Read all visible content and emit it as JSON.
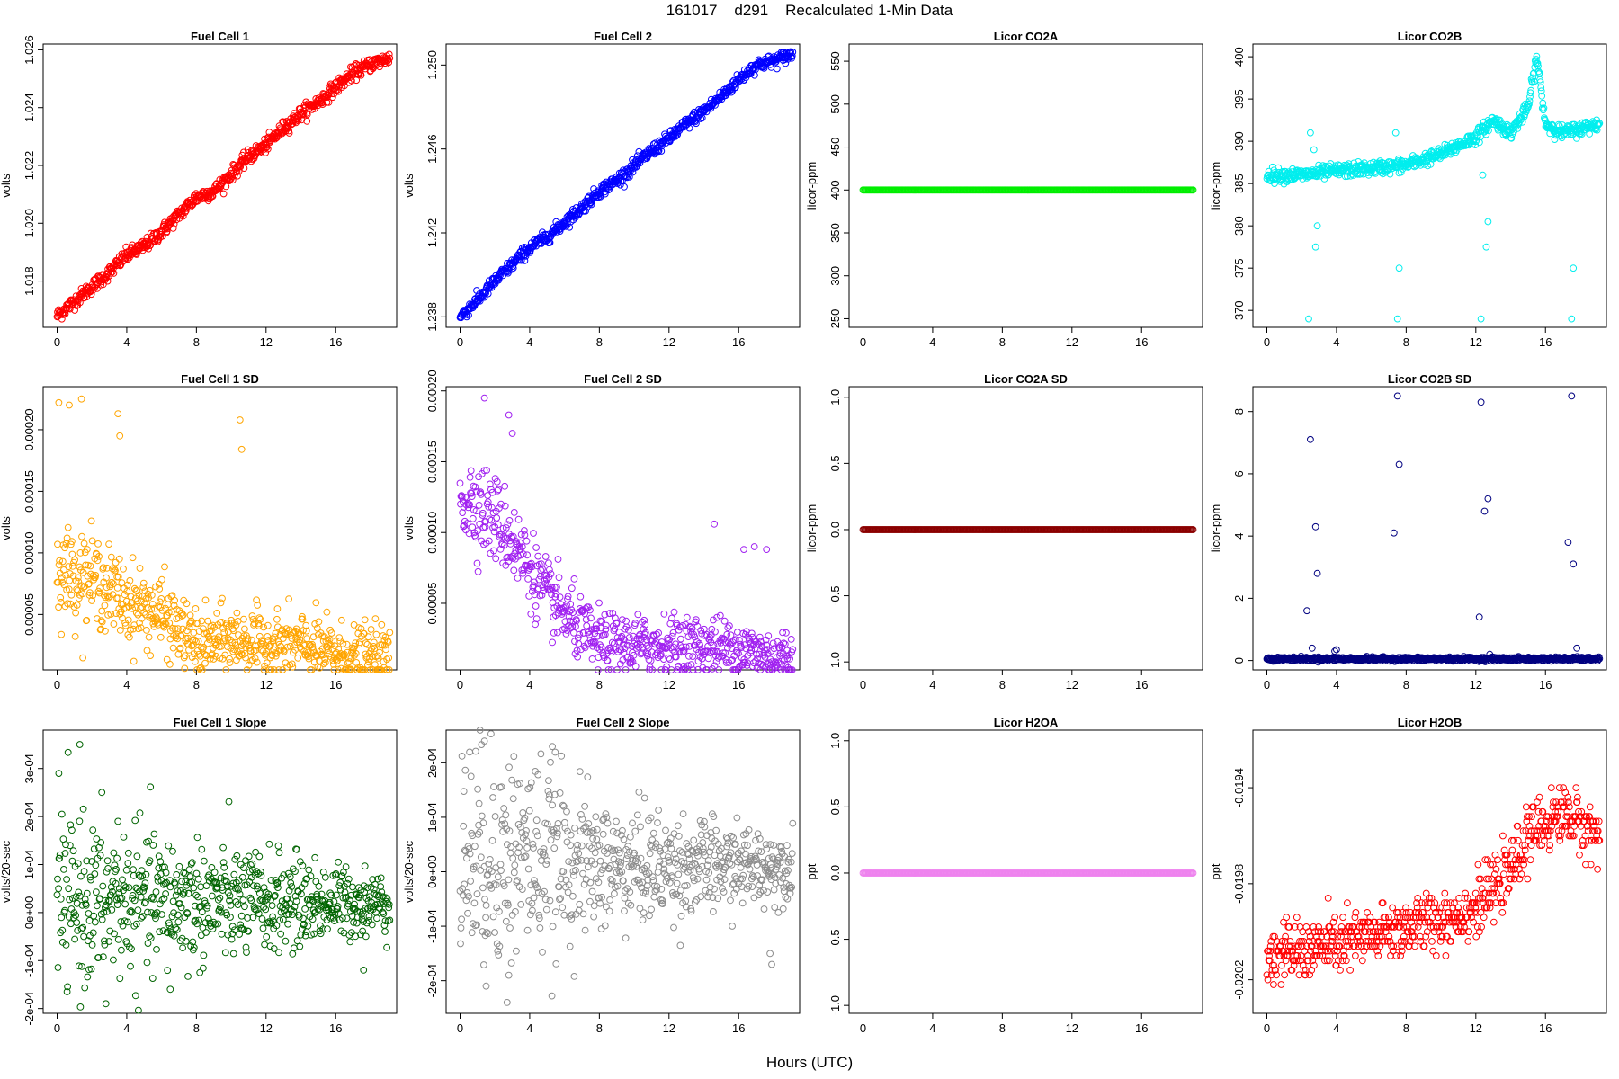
{
  "figure": {
    "title": "161017    d291    Recalculated 1-Min Data",
    "xlabel": "Hours (UTC)"
  },
  "chart_data": [
    {
      "type": "scatter",
      "title": "Fuel Cell 1",
      "ylabel": "volts",
      "color": "#ff0000",
      "xlim": [
        -0.8,
        19.5
      ],
      "ylim": [
        1.0164,
        1.0262
      ],
      "yticks": [
        1.018,
        1.02,
        1.022,
        1.024,
        1.026
      ],
      "ytick_labels": [
        "1.018",
        "1.020",
        "1.022",
        "1.024",
        "1.026"
      ],
      "xticks": [
        0,
        4,
        8,
        12,
        16
      ],
      "xtick_labels": [
        "0",
        "4",
        "8",
        "12",
        "16"
      ],
      "trend": {
        "x": [
          0,
          1,
          2,
          3,
          4,
          5,
          6,
          7,
          8,
          9,
          10,
          11,
          12,
          13,
          14,
          15,
          16,
          17,
          18,
          19
        ],
        "y": [
          1.0168,
          1.0173,
          1.0178,
          1.0183,
          1.0189,
          1.0192,
          1.0197,
          1.0203,
          1.0209,
          1.0211,
          1.0217,
          1.0223,
          1.0227,
          1.0233,
          1.0238,
          1.0242,
          1.0247,
          1.0252,
          1.0255,
          1.0257
        ]
      },
      "pattern": "dense_band",
      "spread": 0.00012
    },
    {
      "type": "scatter",
      "title": "Fuel Cell 2",
      "ylabel": "volts",
      "color": "#0000ff",
      "xlim": [
        -0.8,
        19.5
      ],
      "ylim": [
        1.2375,
        1.251
      ],
      "yticks": [
        1.238,
        1.242,
        1.246,
        1.25
      ],
      "ytick_labels": [
        "1.238",
        "1.242",
        "1.246",
        "1.250"
      ],
      "xticks": [
        0,
        4,
        8,
        12,
        16
      ],
      "xtick_labels": [
        "0",
        "4",
        "8",
        "12",
        "16"
      ],
      "trend": {
        "x": [
          0,
          1,
          2,
          3,
          4,
          5,
          6,
          7,
          8,
          9,
          10,
          11,
          12,
          13,
          14,
          15,
          16,
          17,
          18,
          19
        ],
        "y": [
          1.238,
          1.2388,
          1.2397,
          1.2405,
          1.2413,
          1.2418,
          1.2425,
          1.2432,
          1.244,
          1.2445,
          1.2452,
          1.2459,
          1.2465,
          1.2472,
          1.2478,
          1.2485,
          1.2493,
          1.25,
          1.2502,
          1.2505
        ]
      },
      "pattern": "dense_band",
      "spread": 0.00015
    },
    {
      "type": "scatter",
      "title": "Licor CO2A",
      "ylabel": "licor-ppm",
      "color": "#00ee00",
      "xlim": [
        -0.8,
        19.5
      ],
      "ylim": [
        240,
        570
      ],
      "yticks": [
        250,
        300,
        350,
        400,
        450,
        500,
        550
      ],
      "ytick_labels": [
        "250",
        "300",
        "350",
        "400",
        "450",
        "500",
        "550"
      ],
      "xticks": [
        0,
        4,
        8,
        12,
        16
      ],
      "xtick_labels": [
        "0",
        "4",
        "8",
        "12",
        "16"
      ],
      "pattern": "flat_line",
      "value": 400
    },
    {
      "type": "scatter",
      "title": "Licor CO2B",
      "ylabel": "licor-ppm",
      "color": "#00eeee",
      "xlim": [
        -0.8,
        19.5
      ],
      "ylim": [
        368,
        401.5
      ],
      "yticks": [
        370,
        375,
        380,
        385,
        390,
        395,
        400
      ],
      "ytick_labels": [
        "370",
        "375",
        "380",
        "385",
        "390",
        "395",
        "400"
      ],
      "xticks": [
        0,
        4,
        8,
        12,
        16
      ],
      "xtick_labels": [
        "0",
        "4",
        "8",
        "12",
        "16"
      ],
      "trend": {
        "x": [
          0,
          2,
          4,
          6,
          8,
          10,
          12,
          13,
          14,
          15,
          15.5,
          16,
          17,
          18,
          19
        ],
        "y": [
          386,
          386,
          386.5,
          386.8,
          387.2,
          388.5,
          390.5,
          392.5,
          391,
          394,
          400,
          392,
          391,
          391.5,
          392
        ]
      },
      "outliers": {
        "x": [
          2.4,
          2.5,
          2.7,
          2.8,
          2.9,
          7.4,
          7.5,
          7.6,
          12.3,
          12.4,
          12.6,
          12.7,
          17.5,
          17.6
        ],
        "y": [
          369,
          391,
          389,
          377.5,
          380,
          391,
          369,
          375,
          369,
          386,
          377.5,
          380.5,
          369,
          375
        ]
      },
      "pattern": "dense_band",
      "spread": 0.4
    },
    {
      "type": "scatter",
      "title": "Fuel Cell 1 SD",
      "ylabel": "volts",
      "color": "#ffa500",
      "xlim": [
        -0.8,
        19.5
      ],
      "ylim": [
        5e-06,
        0.000235
      ],
      "yticks": [
        5e-05,
        0.0001,
        0.00015,
        0.0002
      ],
      "ytick_labels": [
        "0.00005",
        "0.00010",
        "0.00015",
        "0.00020"
      ],
      "xticks": [
        0,
        4,
        8,
        12,
        16
      ],
      "xtick_labels": [
        "0",
        "4",
        "8",
        "12",
        "16"
      ],
      "trend": {
        "x": [
          0,
          2,
          4,
          6,
          8,
          10,
          12,
          14,
          16,
          18,
          19
        ],
        "y": [
          8.5e-05,
          8e-05,
          6e-05,
          5e-05,
          2.5e-05,
          3e-05,
          2.5e-05,
          2.5e-05,
          1.8e-05,
          1.5e-05,
          1.5e-05
        ]
      },
      "pattern": "noisy",
      "spread": 1.8e-05,
      "outliers": {
        "x": [
          0.1,
          0.7,
          1.4,
          3.5,
          3.6,
          10.5,
          10.6
        ],
        "y": [
          0.000222,
          0.00022,
          0.000225,
          0.000213,
          0.000195,
          0.000208,
          0.000184
        ]
      }
    },
    {
      "type": "scatter",
      "title": "Fuel Cell 2 SD",
      "ylabel": "volts",
      "color": "#a020f0",
      "xlim": [
        -0.8,
        19.5
      ],
      "ylim": [
        3e-06,
        0.000203
      ],
      "yticks": [
        5e-05,
        0.0001,
        0.00015,
        0.0002
      ],
      "ytick_labels": [
        "0.00005",
        "0.00010",
        "0.00015",
        "0.00020"
      ],
      "xticks": [
        0,
        4,
        8,
        12,
        16
      ],
      "xtick_labels": [
        "0",
        "4",
        "8",
        "12",
        "16"
      ],
      "trend": {
        "x": [
          0,
          1,
          2,
          3,
          4,
          5,
          6,
          7,
          8,
          10,
          12,
          14,
          16,
          18,
          19
        ],
        "y": [
          0.000125,
          0.00012,
          0.00011,
          9.5e-05,
          7.5e-05,
          5.5e-05,
          4.2e-05,
          3e-05,
          2.2e-05,
          2e-05,
          2e-05,
          2e-05,
          1.8e-05,
          1.2e-05,
          1.2e-05
        ]
      },
      "pattern": "noisy",
      "spread": 1.6e-05,
      "outliers": {
        "x": [
          1.4,
          2.8,
          3.0,
          14.6,
          16.3,
          16.9,
          17.6
        ],
        "y": [
          0.000195,
          0.000183,
          0.00017,
          0.000106,
          8.8e-05,
          9e-05,
          8.8e-05
        ]
      }
    },
    {
      "type": "scatter",
      "title": "Licor CO2A SD",
      "ylabel": "licor-ppm",
      "color": "#8b0000",
      "xlim": [
        -0.8,
        19.5
      ],
      "ylim": [
        -1.06,
        1.08
      ],
      "yticks": [
        -1.0,
        -0.5,
        0.0,
        0.5,
        1.0
      ],
      "ytick_labels": [
        "-1.0",
        "-0.5",
        "0.0",
        "0.5",
        "1.0"
      ],
      "xticks": [
        0,
        4,
        8,
        12,
        16
      ],
      "xtick_labels": [
        "0",
        "4",
        "8",
        "12",
        "16"
      ],
      "pattern": "flat_line",
      "value": 0
    },
    {
      "type": "scatter",
      "title": "Licor CO2B SD",
      "ylabel": "licor-ppm",
      "color": "#000080",
      "xlim": [
        -0.8,
        19.5
      ],
      "ylim": [
        -0.3,
        8.8
      ],
      "yticks": [
        0,
        2,
        4,
        6,
        8
      ],
      "ytick_labels": [
        "0",
        "2",
        "4",
        "6",
        "8"
      ],
      "xticks": [
        0,
        4,
        8,
        12,
        16
      ],
      "xtick_labels": [
        "0",
        "4",
        "8",
        "12",
        "16"
      ],
      "trend": {
        "x": [
          0,
          19
        ],
        "y": [
          0.05,
          0.05
        ]
      },
      "outliers": {
        "x": [
          2.3,
          2.5,
          2.6,
          2.8,
          2.9,
          3.9,
          4.0,
          7.3,
          7.5,
          7.6,
          12.2,
          12.3,
          12.5,
          12.7,
          12.8,
          17.3,
          17.5,
          17.6,
          17.8
        ],
        "y": [
          1.6,
          7.1,
          0.4,
          4.3,
          2.8,
          0.3,
          0.35,
          4.1,
          8.5,
          6.3,
          1.4,
          8.3,
          4.8,
          5.2,
          0.2,
          3.8,
          8.5,
          3.1,
          0.4
        ]
      },
      "pattern": "dense_band",
      "spread": 0.03
    },
    {
      "type": "scatter",
      "title": "Fuel Cell 1 Slope",
      "ylabel": "volts/20-sec",
      "color": "#006400",
      "xlim": [
        -0.8,
        19.5
      ],
      "ylim": [
        -0.00021,
        0.00038
      ],
      "yticks": [
        -0.0002,
        -0.0001,
        0,
        0.0001,
        0.0002,
        0.0003
      ],
      "ytick_labels": [
        "-2e-04",
        "-1e-04",
        "0e+00",
        "1e-04",
        "2e-04",
        "3e-04"
      ],
      "xticks": [
        0,
        4,
        8,
        12,
        16
      ],
      "xtick_labels": [
        "0",
        "4",
        "8",
        "12",
        "16"
      ],
      "trend": {
        "x": [
          0,
          4,
          8,
          12,
          16,
          19
        ],
        "y": [
          2e-05,
          2e-05,
          2e-05,
          2e-05,
          2e-05,
          2e-05
        ]
      },
      "pattern": "noisy_decreasing",
      "spread": [
        9e-05,
        3e-05
      ],
      "outliers": {
        "x": [
          0.1,
          1.3,
          2.8,
          3.5,
          6.5,
          17.6
        ],
        "y": [
          0.00029,
          0.00035,
          -0.00019,
          0.00019,
          -0.00016,
          -0.00012
        ]
      }
    },
    {
      "type": "scatter",
      "title": "Fuel Cell 2 Slope",
      "ylabel": "volts/20-sec",
      "color": "#8c8c8c",
      "xlim": [
        -0.8,
        19.5
      ],
      "ylim": [
        -0.00026,
        0.00026
      ],
      "yticks": [
        -0.0002,
        -0.0001,
        0,
        0.0001,
        0.0002
      ],
      "ytick_labels": [
        "-2e-04",
        "-1e-04",
        "0e+00",
        "1e-04",
        "2e-04"
      ],
      "xticks": [
        0,
        4,
        8,
        12,
        16
      ],
      "xtick_labels": [
        "0",
        "4",
        "8",
        "12",
        "16"
      ],
      "trend": {
        "x": [
          0,
          4,
          8,
          12,
          16,
          19
        ],
        "y": [
          3e-05,
          3e-05,
          1e-05,
          1e-05,
          1e-05,
          1e-05
        ]
      },
      "pattern": "noisy_decreasing",
      "spread": [
        0.00011,
        4e-05
      ],
      "outliers": {
        "x": [
          1.4,
          1.5,
          2.7,
          2.8,
          5.3,
          17.8,
          17.9
        ],
        "y": [
          0.00024,
          -0.00021,
          -0.00024,
          -0.00019,
          0.00023,
          -0.00015,
          -0.00017
        ]
      }
    },
    {
      "type": "scatter",
      "title": "Licor H2OA",
      "ylabel": "ppt",
      "color": "#ee82ee",
      "xlim": [
        -0.8,
        19.5
      ],
      "ylim": [
        -1.06,
        1.08
      ],
      "yticks": [
        -1.0,
        -0.5,
        0.0,
        0.5,
        1.0
      ],
      "ytick_labels": [
        "-1.0",
        "-0.5",
        "0.0",
        "0.5",
        "1.0"
      ],
      "xticks": [
        0,
        4,
        8,
        12,
        16
      ],
      "xtick_labels": [
        "0",
        "4",
        "8",
        "12",
        "16"
      ],
      "pattern": "flat_line",
      "value": 0
    },
    {
      "type": "scatter",
      "title": "Licor H2OB",
      "ylabel": "ppt",
      "color": "#ff0000",
      "xlim": [
        -0.8,
        19.5
      ],
      "ylim": [
        -0.02034,
        -0.01916
      ],
      "yticks": [
        -0.0202,
        -0.0198,
        -0.0194
      ],
      "ytick_labels": [
        "-0.0202",
        "-0.0198",
        "-0.0194"
      ],
      "xticks": [
        0,
        4,
        8,
        12,
        16
      ],
      "xtick_labels": [
        "0",
        "4",
        "8",
        "12",
        "16"
      ],
      "trend": {
        "x": [
          0,
          2,
          4,
          6,
          8,
          10,
          12,
          14,
          15,
          16,
          17,
          18,
          19
        ],
        "y": [
          -0.0201,
          -0.02008,
          -0.02005,
          -0.02002,
          -0.01998,
          -0.01995,
          -0.0199,
          -0.01975,
          -0.0196,
          -0.01955,
          -0.0195,
          -0.01955,
          -0.0196
        ]
      },
      "pattern": "quantized",
      "quantum": 2e-05,
      "spread": 6e-05
    }
  ]
}
